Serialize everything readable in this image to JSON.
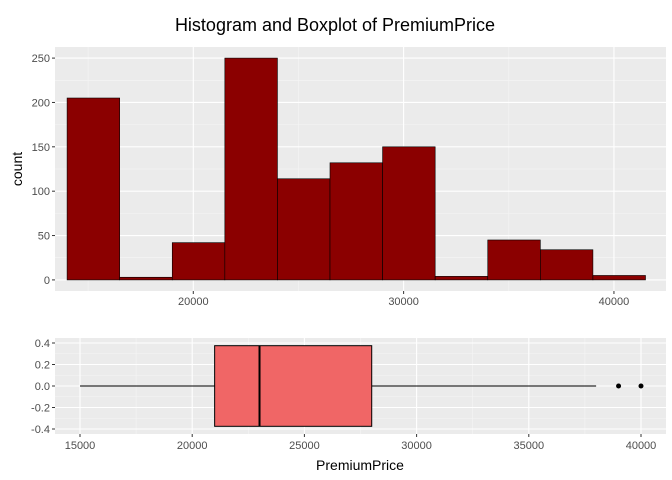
{
  "chart_data": [
    {
      "type": "histogram",
      "title": "Histogram and Boxplot of PremiumPrice",
      "xlabel": "",
      "ylabel": "count",
      "xlim": [
        13425,
        42475
      ],
      "ylim": [
        -12.5,
        262.5
      ],
      "x_ticks": [
        20000,
        30000,
        40000
      ],
      "y_ticks": [
        0,
        50,
        100,
        150,
        200,
        250
      ],
      "fill_color": "#8B0000",
      "grid": true,
      "bins": [
        {
          "x0": 14000,
          "x1": 16500,
          "count": 205
        },
        {
          "x0": 16500,
          "x1": 19000,
          "count": 3
        },
        {
          "x0": 19000,
          "x1": 21500,
          "count": 42
        },
        {
          "x0": 21500,
          "x1": 24000,
          "count": 250
        },
        {
          "x0": 24000,
          "x1": 26500,
          "count": 114
        },
        {
          "x0": 26500,
          "x1": 29000,
          "count": 132
        },
        {
          "x0": 29000,
          "x1": 31500,
          "count": 150
        },
        {
          "x0": 31500,
          "x1": 34000,
          "count": 4
        },
        {
          "x0": 34000,
          "x1": 36500,
          "count": 45
        },
        {
          "x0": 36500,
          "x1": 39000,
          "count": 34
        },
        {
          "x0": 39000,
          "x1": 41500,
          "count": 5
        }
      ]
    },
    {
      "type": "boxplot",
      "xlabel": "PremiumPrice",
      "ylabel": "",
      "xlim": [
        14000,
        41500
      ],
      "ylim": [
        -0.4,
        0.4
      ],
      "x_ticks": [
        15000,
        20000,
        25000,
        30000,
        35000,
        40000
      ],
      "y_ticks": [
        "0.4",
        "0.2",
        "0.0",
        "-0.2",
        "-0.4"
      ],
      "fill_color": "#F06666",
      "grid": true,
      "box": {
        "whisker_low": 15000,
        "q1": 21000,
        "median": 23000,
        "q3": 28000,
        "whisker_high": 38000,
        "box_y_range": [
          -0.375,
          0.375
        ],
        "outliers": [
          39000,
          40000
        ]
      }
    }
  ]
}
